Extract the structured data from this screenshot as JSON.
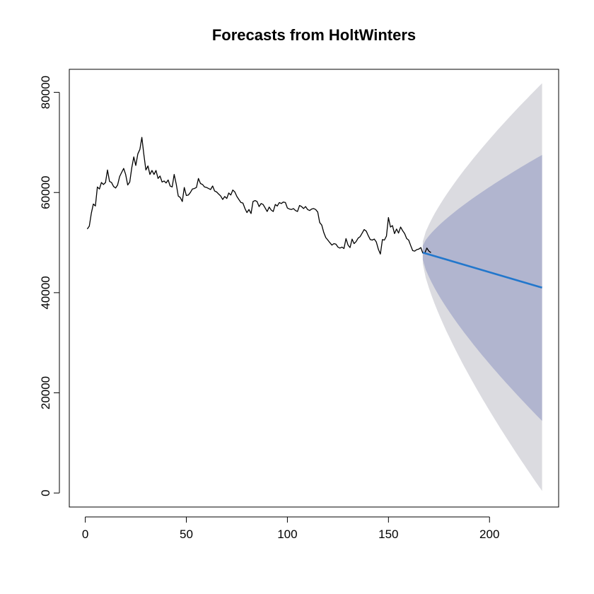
{
  "chart_data": {
    "type": "line",
    "title": "Forecasts from HoltWinters",
    "xlabel": "",
    "ylabel": "",
    "xlim": [
      -7.9,
      234.2
    ],
    "ylim": [
      -2800,
      84600
    ],
    "x_ticks": [
      0,
      50,
      100,
      150,
      200
    ],
    "y_ticks": [
      0,
      20000,
      40000,
      60000,
      80000
    ],
    "x_tick_labels": [
      "0",
      "50",
      "100",
      "150",
      "200"
    ],
    "y_tick_labels": [
      "0",
      "20000",
      "40000",
      "60000",
      "80000"
    ],
    "grid": false,
    "colors": {
      "observed": "#000000",
      "forecast": "#2277cc",
      "interval_80": "#b1b5cf",
      "interval_95": "#dbdbe0"
    },
    "observed": {
      "x_start": 1,
      "values": [
        52700,
        53300,
        55900,
        57700,
        57300,
        61100,
        60700,
        62000,
        61600,
        62000,
        64500,
        62200,
        62000,
        61200,
        60900,
        61500,
        63200,
        64000,
        64800,
        63600,
        61500,
        62100,
        64900,
        67100,
        65400,
        67700,
        68600,
        71000,
        67500,
        64500,
        65300,
        63600,
        64400,
        63600,
        64400,
        62800,
        63300,
        62100,
        62300,
        61900,
        62500,
        61300,
        61100,
        63600,
        61700,
        59300,
        59000,
        58200,
        61000,
        59400,
        59500,
        60000,
        60700,
        60800,
        61000,
        62800,
        61800,
        61600,
        61100,
        61000,
        60800,
        60600,
        61300,
        60300,
        60100,
        59700,
        59300,
        58600,
        59200,
        58800,
        59900,
        59500,
        60500,
        60100,
        59200,
        58600,
        58000,
        57900,
        56800,
        56000,
        56600,
        55800,
        58200,
        58400,
        58200,
        57200,
        57800,
        57600,
        56900,
        56200,
        57100,
        56500,
        56200,
        57600,
        57300,
        58000,
        57800,
        58100,
        58000,
        56900,
        56700,
        56600,
        56800,
        56400,
        56200,
        57400,
        57200,
        56800,
        57200,
        56600,
        56400,
        56700,
        56800,
        56600,
        56100,
        54000,
        53500,
        52000,
        51000,
        50500,
        50000,
        49500,
        49800,
        49700,
        49100,
        48900,
        49100,
        48800,
        50800,
        49500,
        49000,
        50700,
        49800,
        50200,
        50900,
        51200,
        51900,
        52600,
        52300,
        51400,
        50600,
        50500,
        50700,
        50100,
        48700,
        47700,
        50600,
        50500,
        51300,
        55000,
        53100,
        53400,
        51800,
        52700,
        51900,
        53100,
        52400,
        51800,
        50800,
        50500,
        49400,
        48400,
        48300,
        48600,
        48700,
        49000,
        47900,
        47900,
        48900,
        48300,
        48000
      ]
    },
    "forecast": {
      "x_start": 167,
      "x_end": 226,
      "y_start": 48000,
      "y_end": 41000
    },
    "interval_80": {
      "upper_start": 49400,
      "upper_end": 67500,
      "lower_start": 46600,
      "lower_end": 14400
    },
    "interval_95": {
      "upper_start": 50200,
      "upper_end": 81800,
      "lower_start": 45800,
      "lower_end": 400
    }
  }
}
